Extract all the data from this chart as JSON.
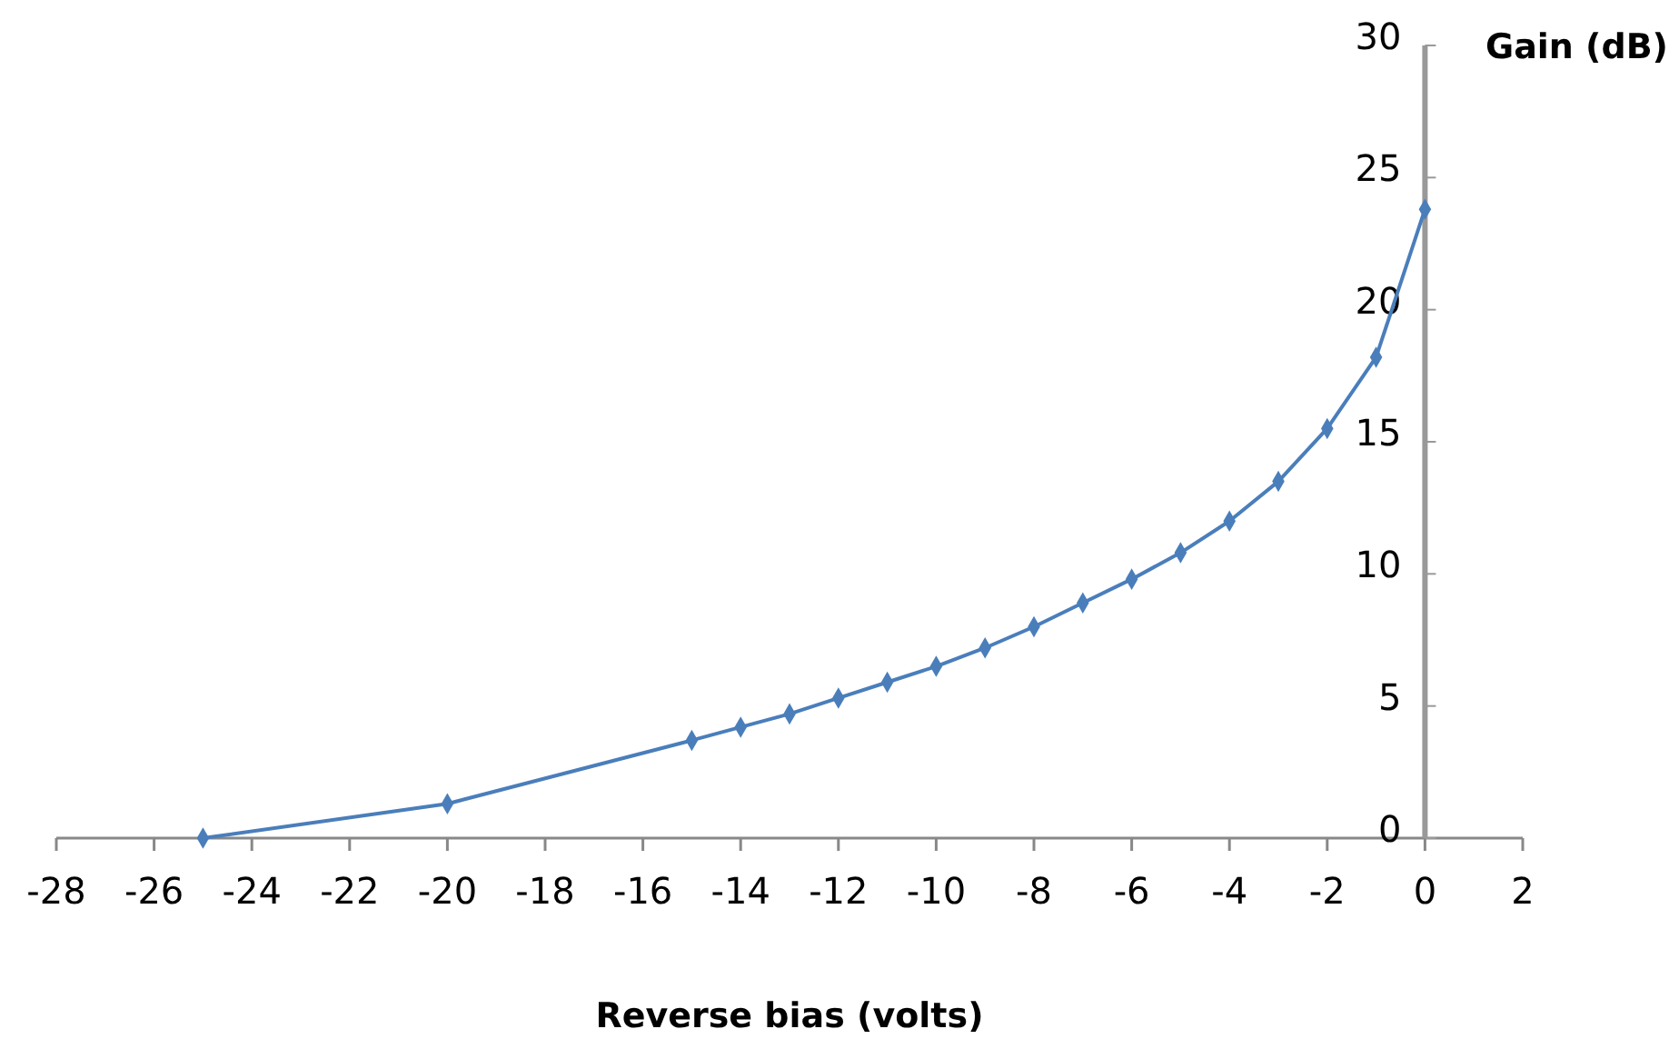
{
  "chart_data": {
    "type": "line",
    "xlabel": "Reverse bias (volts)",
    "ylabel": "Gain (dB)",
    "x": [
      -25,
      -20,
      -15,
      -14,
      -13,
      -12,
      -11,
      -10,
      -9,
      -8,
      -7,
      -6,
      -5,
      -4,
      -3,
      -2,
      -1,
      0
    ],
    "series": [
      {
        "color": "#4a7ebb",
        "values": [
          0,
          1.3,
          3.7,
          4.2,
          4.7,
          5.3,
          5.9,
          6.5,
          7.2,
          8.0,
          8.9,
          9.8,
          10.8,
          12.0,
          13.5,
          15.5,
          18.2,
          23.8
        ]
      }
    ],
    "xlim": [
      -28,
      2
    ],
    "xticks": [
      -28,
      -26,
      -24,
      -22,
      -20,
      -18,
      -16,
      -14,
      -12,
      -10,
      -8,
      -6,
      -4,
      -2,
      0,
      2
    ],
    "ylim": [
      0,
      30
    ],
    "yticks": [
      0,
      5,
      10,
      15,
      20,
      25,
      30
    ],
    "marker": "diamond",
    "line_style": "solid",
    "grid": false
  }
}
